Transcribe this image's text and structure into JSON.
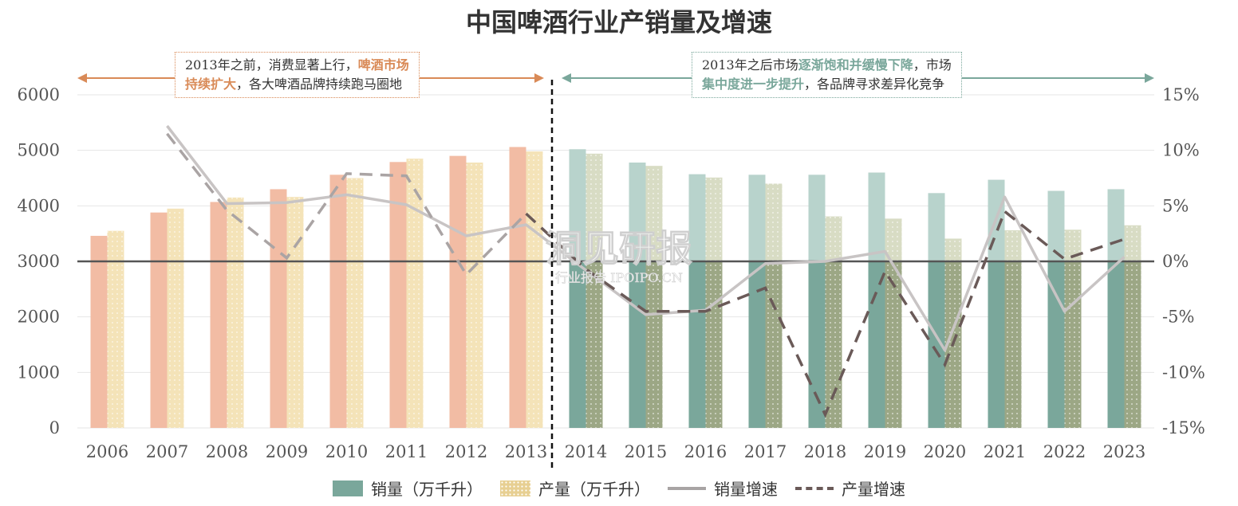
{
  "chart_data": {
    "type": "bar",
    "title": "中国啤酒行业产销量及增速",
    "categories": [
      "2006",
      "2007",
      "2008",
      "2009",
      "2010",
      "2011",
      "2012",
      "2013",
      "2014",
      "2015",
      "2016",
      "2017",
      "2018",
      "2019",
      "2020",
      "2021",
      "2022",
      "2023"
    ],
    "y_left": {
      "min": 0,
      "max": 6000,
      "ticks": [
        0,
        1000,
        2000,
        3000,
        4000,
        5000,
        6000
      ]
    },
    "y_right": {
      "min": -15,
      "max": 15,
      "tick_labels": [
        "-15%",
        "-10%",
        "-5%",
        "0%",
        "5%",
        "10%",
        "15%"
      ],
      "tick_values": [
        -15,
        -10,
        -5,
        0,
        5,
        10,
        15
      ]
    },
    "series": [
      {
        "name": "销量（万千升）",
        "kind": "bar",
        "axis": "left",
        "values": [
          3460,
          3880,
          4070,
          4300,
          4560,
          4790,
          4900,
          5060,
          5020,
          4780,
          4570,
          4560,
          4560,
          4600,
          4230,
          4470,
          4270,
          4300
        ]
      },
      {
        "name": "产量（万千升）",
        "kind": "bar",
        "axis": "left",
        "values": [
          3550,
          3950,
          4150,
          4160,
          4500,
          4850,
          4780,
          4980,
          4940,
          4720,
          4510,
          4400,
          3810,
          3770,
          3410,
          3560,
          3570,
          3650
        ]
      },
      {
        "name": "销量增速",
        "kind": "line",
        "axis": "right",
        "values": [
          null,
          12.2,
          5.2,
          5.3,
          6.0,
          5.1,
          2.3,
          3.3,
          -0.8,
          -4.8,
          -4.4,
          -0.2,
          0.0,
          0.9,
          -8.0,
          5.8,
          -4.5,
          0.4
        ]
      },
      {
        "name": "产量增速",
        "kind": "dashed-line",
        "axis": "right",
        "values": [
          null,
          11.5,
          4.6,
          0.3,
          7.9,
          7.7,
          -1.2,
          4.3,
          -0.7,
          -4.5,
          -4.5,
          -2.4,
          -13.8,
          -0.9,
          -9.3,
          4.5,
          0.2,
          2.0
        ]
      }
    ],
    "colors": {
      "sales_bar_before": "#f2bca4",
      "prod_bar_before": "#f4e3b8",
      "sales_bar_after_above": "#b8d3cc",
      "sales_bar_after_below": "#7aa79b",
      "prod_bar_after_above": "#d8dcc4",
      "prod_bar_after_below": "#9ca785",
      "sales_growth_line": "#c8c4c4",
      "prod_growth_line_before": "#aaa4a4",
      "prod_growth_line_after": "#6a5a58",
      "zero_line": "#555555",
      "arrow_left": "#d98a57",
      "arrow_right": "#7aa79b"
    },
    "period_split_after": "2013",
    "annotations": {
      "left": {
        "pre": "2013年之前，消费显著上行，",
        "hl1": "啤酒市场",
        "hl2": "持续扩大",
        "post": "，各大啤酒品牌持续跑马圈地"
      },
      "right": {
        "pre": "2013年之后市场",
        "hl1": "逐渐饱和并缓慢下降",
        "mid": "，市场",
        "hl2": "集中度进一步提升",
        "post": "，各品牌寻求差异化竞争"
      }
    },
    "watermark": {
      "main": "洞见研报",
      "sub": "行业报告 IPOIPO.CN"
    },
    "legend_position": "bottom"
  },
  "legend": [
    {
      "label": "销量（万千升）",
      "type": "box",
      "color": "#7aa79b"
    },
    {
      "label": "产量（万千升）",
      "type": "box",
      "color": "#e7cf92"
    },
    {
      "label": "销量增速",
      "type": "line",
      "color": "#a8a4a4"
    },
    {
      "label": "产量增速",
      "type": "dash",
      "color": "#6a5a58"
    }
  ]
}
